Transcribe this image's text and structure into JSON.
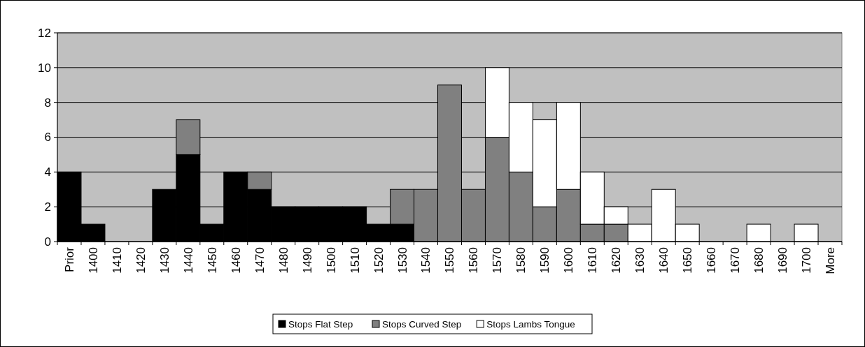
{
  "chart_data": {
    "type": "bar",
    "stacked": true,
    "categories": [
      "Prior",
      "1400",
      "1410",
      "1420",
      "1430",
      "1440",
      "1450",
      "1460",
      "1470",
      "1480",
      "1490",
      "1500",
      "1510",
      "1520",
      "1530",
      "1540",
      "1550",
      "1560",
      "1570",
      "1580",
      "1590",
      "1600",
      "1610",
      "1620",
      "1630",
      "1640",
      "1650",
      "1660",
      "1670",
      "1680",
      "1690",
      "1700",
      "More"
    ],
    "series": [
      {
        "name": "Stops Flat Step",
        "color": "#000000",
        "values": [
          4,
          1,
          null,
          null,
          3,
          5,
          1,
          4,
          3,
          2,
          2,
          2,
          2,
          1,
          1,
          null,
          null,
          null,
          null,
          null,
          null,
          null,
          null,
          null,
          null,
          null,
          null,
          null,
          null,
          null,
          null,
          null,
          null
        ]
      },
      {
        "name": "Stops Curved Step",
        "color": "#808080",
        "values": [
          null,
          null,
          null,
          null,
          null,
          2,
          null,
          null,
          1,
          null,
          null,
          null,
          null,
          null,
          2,
          3,
          9,
          3,
          6,
          4,
          2,
          3,
          1,
          1,
          null,
          null,
          null,
          null,
          null,
          null,
          null,
          null,
          null
        ]
      },
      {
        "name": "Stops Lambs Tongue",
        "color": "#ffffff",
        "values": [
          null,
          null,
          null,
          null,
          null,
          null,
          null,
          null,
          null,
          null,
          null,
          null,
          null,
          null,
          null,
          null,
          null,
          null,
          4,
          4,
          5,
          5,
          3,
          1,
          1,
          3,
          1,
          null,
          null,
          1,
          null,
          1,
          null
        ]
      }
    ],
    "ylim": [
      0,
      12
    ],
    "yticks": [
      0,
      2,
      4,
      6,
      8,
      10,
      12
    ],
    "grid": "y",
    "legend": "bottom"
  }
}
